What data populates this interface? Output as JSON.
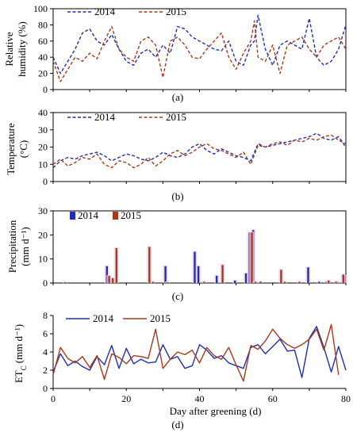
{
  "chart_data": [
    {
      "type": "line",
      "panel_label": "(a)",
      "ylabel_lines": [
        "Relative",
        "humidity (%)"
      ],
      "ylim": [
        0,
        100
      ],
      "yticks": [
        0,
        20,
        40,
        60,
        80,
        100
      ],
      "xlim": [
        0,
        80
      ],
      "line_style": "dashed",
      "legend_placement": "top-left",
      "series": [
        {
          "name": "2014",
          "color": "#1f2fb5",
          "x": [
            0,
            2,
            4,
            6,
            8,
            10,
            12,
            14,
            16,
            18,
            20,
            22,
            24,
            26,
            28,
            30,
            32,
            34,
            36,
            38,
            40,
            42,
            44,
            46,
            48,
            50,
            52,
            54,
            55,
            56,
            58,
            60,
            62,
            64,
            66,
            68,
            70,
            72,
            74,
            76,
            78,
            80
          ],
          "values": [
            40,
            20,
            35,
            50,
            70,
            75,
            60,
            55,
            68,
            50,
            35,
            30,
            45,
            50,
            40,
            55,
            45,
            78,
            75,
            65,
            60,
            55,
            50,
            48,
            60,
            35,
            30,
            55,
            60,
            92,
            50,
            30,
            55,
            60,
            55,
            50,
            88,
            40,
            30,
            35,
            50,
            80
          ]
        },
        {
          "name": "2015",
          "color": "#a63a1e",
          "x": [
            0,
            2,
            4,
            6,
            8,
            10,
            12,
            14,
            16,
            18,
            20,
            22,
            24,
            26,
            28,
            30,
            32,
            34,
            36,
            38,
            40,
            42,
            44,
            46,
            48,
            50,
            52,
            54,
            55,
            56,
            58,
            60,
            62,
            64,
            66,
            68,
            70,
            72,
            74,
            76,
            78,
            80
          ],
          "values": [
            35,
            10,
            25,
            40,
            35,
            45,
            38,
            60,
            78,
            50,
            40,
            35,
            60,
            65,
            55,
            15,
            60,
            65,
            55,
            40,
            38,
            50,
            60,
            70,
            40,
            25,
            45,
            60,
            85,
            40,
            35,
            55,
            20,
            55,
            60,
            65,
            50,
            40,
            55,
            60,
            65,
            50
          ]
        }
      ]
    },
    {
      "type": "line",
      "panel_label": "(b)",
      "ylabel_lines": [
        "Temperature",
        "(°C)"
      ],
      "ylim": [
        0,
        40
      ],
      "yticks": [
        0,
        10,
        20,
        30,
        40
      ],
      "xlim": [
        0,
        80
      ],
      "line_style": "dashed",
      "legend_placement": "top-left",
      "series": [
        {
          "name": "2014",
          "color": "#1f2fb5",
          "x": [
            0,
            2,
            4,
            6,
            8,
            10,
            12,
            14,
            16,
            18,
            20,
            22,
            24,
            26,
            28,
            30,
            32,
            34,
            36,
            38,
            40,
            42,
            44,
            46,
            48,
            50,
            52,
            54,
            56,
            58,
            60,
            62,
            64,
            66,
            68,
            70,
            72,
            74,
            76,
            78,
            80
          ],
          "values": [
            8,
            12,
            14,
            13,
            15,
            16,
            17,
            15,
            12,
            14,
            16,
            15,
            13,
            12,
            14,
            17,
            15,
            14,
            16,
            20,
            22,
            18,
            16,
            19,
            17,
            15,
            14,
            12,
            22,
            20,
            21,
            22,
            23,
            24,
            25,
            26,
            28,
            25,
            24,
            26,
            20
          ]
        },
        {
          "name": "2015",
          "color": "#a63a1e",
          "x": [
            0,
            2,
            4,
            6,
            8,
            10,
            12,
            14,
            16,
            18,
            20,
            22,
            24,
            26,
            28,
            30,
            32,
            34,
            36,
            38,
            40,
            42,
            44,
            46,
            48,
            50,
            52,
            54,
            56,
            58,
            60,
            62,
            64,
            66,
            68,
            70,
            72,
            74,
            76,
            78,
            80
          ],
          "values": [
            10,
            13,
            9,
            11,
            14,
            13,
            16,
            10,
            8,
            12,
            11,
            8,
            10,
            14,
            9,
            12,
            16,
            18,
            15,
            17,
            20,
            22,
            19,
            18,
            16,
            14,
            17,
            10,
            21,
            20,
            22,
            23,
            21,
            24,
            23,
            25,
            24,
            26,
            27,
            24,
            22
          ]
        }
      ]
    },
    {
      "type": "bar",
      "panel_label": "(c)",
      "ylabel_lines": [
        "Precipitation",
        "(mm d⁻¹)"
      ],
      "ylim": [
        0,
        30
      ],
      "yticks": [
        0,
        10,
        20,
        30
      ],
      "xlim": [
        0,
        80
      ],
      "legend_placement": "top-left",
      "series": [
        {
          "name": "2014",
          "color": "#1f2fb5",
          "x": [
            15,
            16,
            31,
            39,
            40,
            45,
            50,
            53,
            54,
            55,
            57,
            70,
            73,
            75,
            78,
            80
          ],
          "values": [
            7,
            1.5,
            7,
            13,
            7,
            3,
            1,
            4,
            21,
            22,
            0.5,
            6.5,
            0.5,
            0.5,
            0.5,
            3
          ]
        },
        {
          "name": "2015",
          "color": "#a63a1e",
          "x": [
            3,
            15,
            16,
            17,
            26,
            27,
            31,
            41,
            46,
            54,
            55,
            62,
            63,
            67,
            75,
            77,
            79
          ],
          "values": [
            0.3,
            3,
            2,
            14.5,
            15,
            0.5,
            0.3,
            0.5,
            7.5,
            21,
            0.5,
            5.5,
            0.5,
            0.5,
            1,
            0.5,
            3.5
          ]
        }
      ]
    },
    {
      "type": "line",
      "panel_label": "(d)",
      "ylabel_main": "ET",
      "ylabel_sub": "C",
      "ylabel_unit": "(mm d⁻¹)",
      "xlabel": "Day after greening (d)",
      "ylim": [
        0,
        8
      ],
      "yticks": [
        0,
        2,
        4,
        6,
        8
      ],
      "xlim": [
        0,
        80
      ],
      "xticks": [
        0,
        20,
        40,
        60,
        80
      ],
      "line_style": "solid",
      "legend_placement": "top-left",
      "series": [
        {
          "name": "2014",
          "color": "#1f2fb5",
          "x": [
            0,
            2,
            4,
            6,
            8,
            10,
            12,
            14,
            16,
            18,
            20,
            22,
            24,
            26,
            28,
            30,
            32,
            34,
            36,
            38,
            40,
            42,
            44,
            46,
            48,
            50,
            52,
            54,
            56,
            58,
            60,
            62,
            64,
            66,
            68,
            70,
            72,
            74,
            76,
            78,
            80
          ],
          "values": [
            1.8,
            3.8,
            2.5,
            3,
            2.4,
            2,
            3.5,
            2.6,
            4.7,
            2.2,
            4.4,
            2.7,
            3.2,
            2.8,
            2.9,
            4.8,
            3.2,
            3.5,
            2.2,
            2.5,
            4.8,
            4.2,
            3.3,
            3.6,
            2.8,
            2.5,
            2.2,
            4.5,
            4.8,
            3.8,
            4.6,
            5.4,
            4.1,
            4.2,
            1.2,
            5.5,
            6.8,
            4.5,
            1.8,
            4.6,
            2
          ]
        },
        {
          "name": "2015",
          "color": "#a63a1e",
          "x": [
            0,
            2,
            4,
            6,
            8,
            10,
            12,
            14,
            16,
            18,
            20,
            22,
            24,
            26,
            28,
            30,
            32,
            34,
            36,
            38,
            40,
            42,
            44,
            46,
            48,
            50,
            52,
            54,
            56,
            58,
            60,
            62,
            64,
            66,
            68,
            70,
            72,
            74,
            76,
            78
          ],
          "values": [
            1.5,
            4.5,
            3.3,
            2.8,
            3.5,
            2.3,
            3.6,
            1,
            3.8,
            3.4,
            2.7,
            3.6,
            3.5,
            3.3,
            6.5,
            2.2,
            3.2,
            4,
            3.7,
            4.2,
            2.8,
            4.5,
            3.6,
            3.2,
            4.5,
            2.6,
            0.8,
            4.7,
            4.3,
            5.2,
            6.5,
            5.5,
            4.8,
            4.4,
            4.8,
            5.4,
            6.5,
            4.2,
            7,
            1.5
          ]
        }
      ]
    }
  ]
}
